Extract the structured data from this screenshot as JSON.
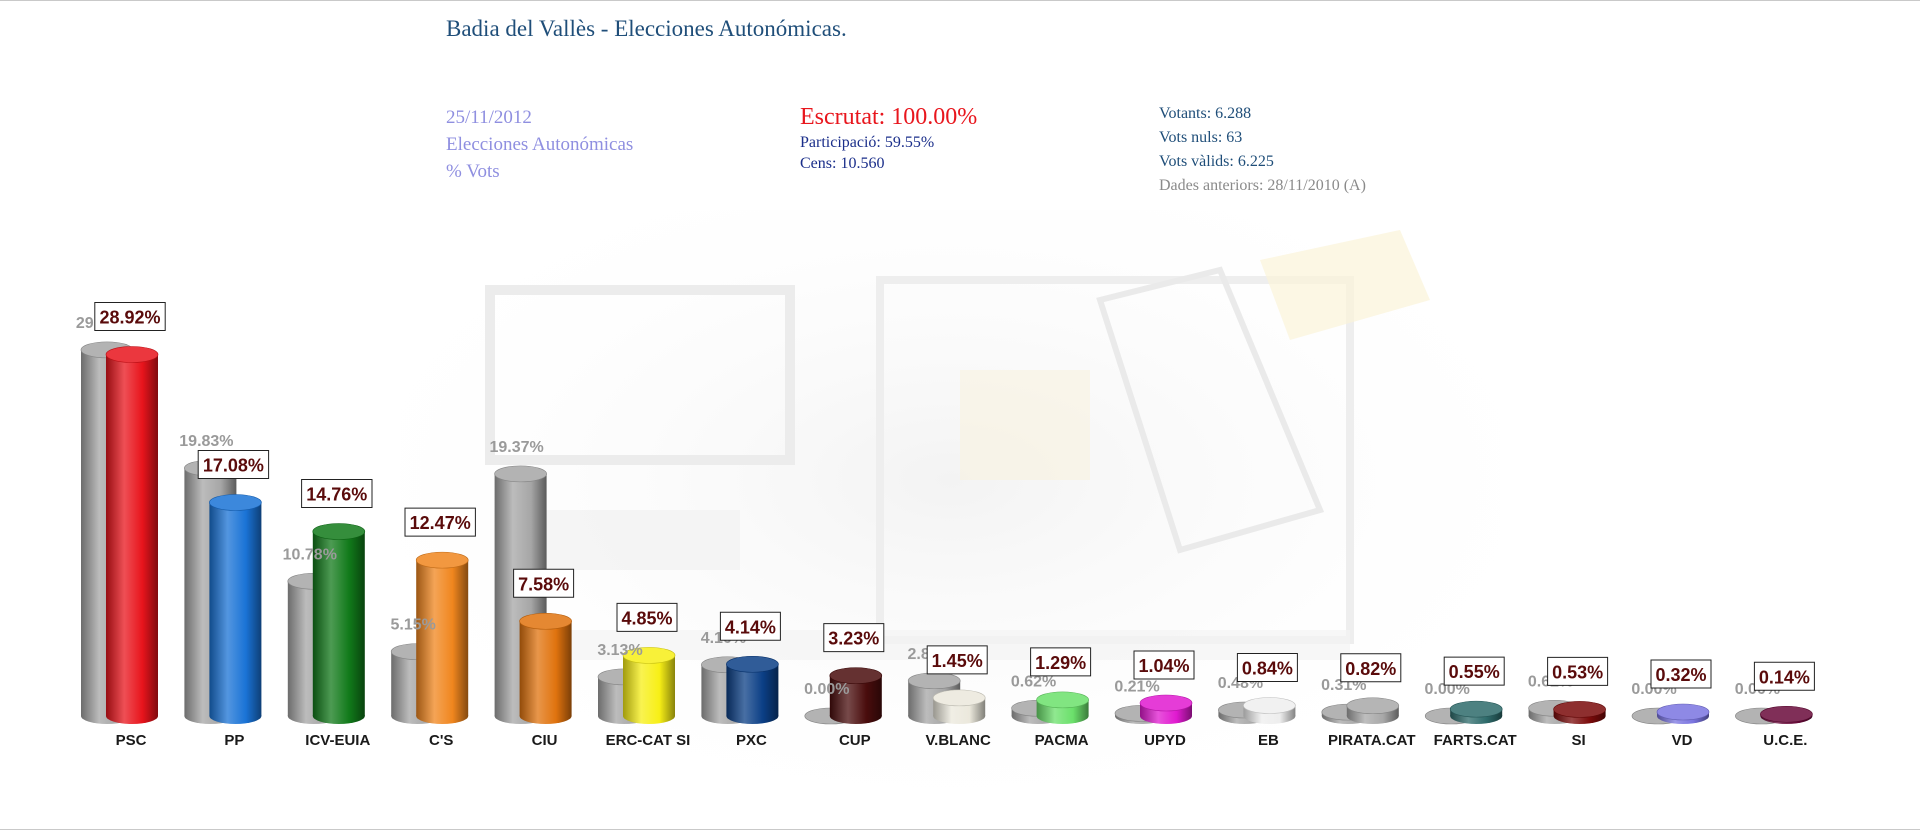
{
  "header": {
    "title": "Badia del Vallès - Elecciones Autonómicas.",
    "date": "25/11/2012",
    "election": "Elecciones Autonómicas",
    "measure": "% Vots",
    "escrutat": "Escrutat: 100.00%",
    "participacio": "Participació: 59.55%",
    "cens": "Cens: 10.560",
    "votants": "Votants: 6.288",
    "vots_nuls": "Vots nuls: 63",
    "vots_valids": "Vots vàlids: 6.225",
    "dades_anteriors": "Dades anteriors: 28/11/2010 (A)"
  },
  "chart_data": {
    "type": "bar",
    "style": "3d-cylinder, grouped (previous grey behind, current colored in front)",
    "categories": [
      "PSC",
      "PP",
      "ICV-EUIA",
      "C'S",
      "CIU",
      "ERC-CAT SI",
      "PXC",
      "CUP",
      "V.BLANC",
      "PACMA",
      "UPYD",
      "EB",
      "PIRATA.CAT",
      "FARTS.CAT",
      "SI",
      "VD",
      "U.C.E."
    ],
    "series": [
      {
        "values": [
          29.29,
          19.83,
          10.78,
          5.15,
          19.37,
          3.13,
          4.1,
          0.0,
          2.82,
          0.62,
          0.21,
          0.48,
          0.31,
          0.0,
          0.62,
          0.0,
          0.0
        ],
        "labels": [
          "29.29%",
          "19.83%",
          "10.78%",
          "5.15%",
          "19.37%",
          "3.13%",
          "4.10%",
          "0.00%",
          "2.82%",
          "0.62%",
          "0.21%",
          "0.48%",
          "0.31%",
          "0.00%",
          "0.62%",
          "0.00%",
          "0.00%"
        ],
        "color": "#a6a6a6"
      },
      {
        "values": [
          28.92,
          17.08,
          14.76,
          12.47,
          7.58,
          4.85,
          4.14,
          3.23,
          1.45,
          1.29,
          1.04,
          0.84,
          0.82,
          0.55,
          0.53,
          0.32,
          0.14
        ],
        "labels": [
          "28.92%",
          "17.08%",
          "14.76%",
          "12.47%",
          "7.58%",
          "4.85%",
          "4.14%",
          "3.23%",
          "1.45%",
          "1.29%",
          "1.04%",
          "0.84%",
          "0.82%",
          "0.55%",
          "0.53%",
          "0.32%",
          "0.14%"
        ],
        "colors": [
          "#e8141c",
          "#1a73d6",
          "#117a1a",
          "#f0861e",
          "#e0730e",
          "#f7ef16",
          "#0b3f86",
          "#4a0d0d",
          "#ebe8dc",
          "#6be06b",
          "#e01ad0",
          "#eeeeee",
          "#a8a8a8",
          "#2e6b6b",
          "#7a0a0a",
          "#7a74e0",
          "#6a0a3a"
        ]
      }
    ],
    "ylim": [
      0,
      30
    ],
    "grid": false,
    "legend": "none"
  }
}
